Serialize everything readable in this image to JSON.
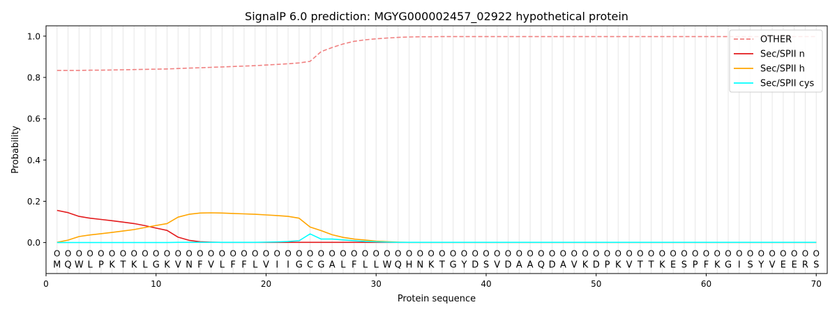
{
  "chart_data": {
    "type": "line",
    "title": "SignalP 6.0 prediction: MGYG000002457_02922 hypothetical protein",
    "xlabel": "Protein sequence",
    "ylabel": "Probability",
    "xlim": [
      0,
      71
    ],
    "ylim": [
      -0.15,
      1.05
    ],
    "xticks": [
      0,
      10,
      20,
      30,
      40,
      50,
      60,
      70
    ],
    "yticks": [
      0.0,
      0.2,
      0.4,
      0.6,
      0.8,
      1.0
    ],
    "xtick_labels": [
      "0",
      "10",
      "20",
      "30",
      "40",
      "50",
      "60",
      "70"
    ],
    "ytick_labels": [
      "0.0",
      "0.2",
      "0.4",
      "0.6",
      "0.8",
      "1.0"
    ],
    "legend_position": "top-right",
    "residues": [
      "M",
      "Q",
      "W",
      "L",
      "P",
      "K",
      "T",
      "K",
      "L",
      "G",
      "K",
      "V",
      "N",
      "F",
      "V",
      "L",
      "F",
      "F",
      "L",
      "V",
      "I",
      "I",
      "G",
      "C",
      "G",
      "A",
      "L",
      "F",
      "L",
      "L",
      "W",
      "Q",
      "H",
      "N",
      "K",
      "T",
      "G",
      "Y",
      "D",
      "S",
      "V",
      "D",
      "A",
      "A",
      "Q",
      "D",
      "A",
      "V",
      "K",
      "D",
      "P",
      "K",
      "V",
      "T",
      "T",
      "K",
      "E",
      "S",
      "P",
      "F",
      "K",
      "G",
      "I",
      "S",
      "Y",
      "V",
      "E",
      "E",
      "R",
      "S"
    ],
    "region_labels": [
      "O",
      "O",
      "O",
      "O",
      "O",
      "O",
      "O",
      "O",
      "O",
      "O",
      "O",
      "O",
      "O",
      "O",
      "O",
      "O",
      "O",
      "O",
      "O",
      "O",
      "O",
      "O",
      "O",
      "O",
      "O",
      "O",
      "O",
      "O",
      "O",
      "O",
      "O",
      "O",
      "O",
      "O",
      "O",
      "O",
      "O",
      "O",
      "O",
      "O",
      "O",
      "O",
      "O",
      "O",
      "O",
      "O",
      "O",
      "O",
      "O",
      "O",
      "O",
      "O",
      "O",
      "O",
      "O",
      "O",
      "O",
      "O",
      "O",
      "O",
      "O",
      "O",
      "O",
      "O",
      "O",
      "O",
      "O",
      "O",
      "O",
      "O"
    ],
    "series": [
      {
        "name": "OTHER",
        "color": "#f08080",
        "dash": true,
        "values": [
          0.834,
          0.834,
          0.834,
          0.835,
          0.835,
          0.836,
          0.837,
          0.838,
          0.839,
          0.84,
          0.841,
          0.843,
          0.845,
          0.847,
          0.849,
          0.851,
          0.853,
          0.855,
          0.857,
          0.86,
          0.863,
          0.866,
          0.87,
          0.878,
          0.925,
          0.945,
          0.962,
          0.975,
          0.982,
          0.987,
          0.991,
          0.994,
          0.996,
          0.997,
          0.997,
          0.998,
          0.998,
          0.998,
          0.998,
          0.998,
          0.998,
          0.998,
          0.998,
          0.998,
          0.998,
          0.998,
          0.998,
          0.998,
          0.998,
          0.998,
          0.998,
          0.998,
          0.998,
          0.998,
          0.998,
          0.998,
          0.998,
          0.998,
          0.998,
          0.998,
          0.998,
          0.998,
          0.998,
          0.998,
          0.998,
          0.998,
          0.998,
          0.998,
          0.998,
          0.998
        ]
      },
      {
        "name": "Sec/SPII n",
        "color": "#e31a1c",
        "dash": false,
        "values": [
          0.156,
          0.145,
          0.127,
          0.118,
          0.112,
          0.106,
          0.099,
          0.092,
          0.082,
          0.07,
          0.059,
          0.026,
          0.011,
          0.004,
          0.002,
          0.001,
          0.001,
          0.001,
          0.001,
          0.001,
          0.001,
          0.001,
          0.001,
          0.001,
          0.001,
          0.001,
          0.001,
          0.001,
          0.001,
          0.001,
          0.001,
          0.001,
          0.001,
          0.001,
          0.001,
          0.001,
          0.001,
          0.001,
          0.001,
          0.001,
          0.001,
          0.001,
          0.001,
          0.001,
          0.001,
          0.001,
          0.001,
          0.001,
          0.001,
          0.001,
          0.001,
          0.001,
          0.001,
          0.001,
          0.001,
          0.001,
          0.001,
          0.001,
          0.001,
          0.001,
          0.001,
          0.001,
          0.001,
          0.001,
          0.001,
          0.001,
          0.001,
          0.001,
          0.001,
          0.001
        ]
      },
      {
        "name": "Sec/SPII h",
        "color": "#ffa500",
        "dash": false,
        "values": [
          0.001,
          0.012,
          0.029,
          0.037,
          0.043,
          0.049,
          0.056,
          0.063,
          0.073,
          0.083,
          0.092,
          0.123,
          0.137,
          0.143,
          0.144,
          0.143,
          0.141,
          0.139,
          0.137,
          0.134,
          0.131,
          0.127,
          0.118,
          0.075,
          0.058,
          0.038,
          0.025,
          0.017,
          0.012,
          0.007,
          0.004,
          0.002,
          0.001,
          0.001,
          0.001,
          0.001,
          0.001,
          0.001,
          0.001,
          0.001,
          0.001,
          0.001,
          0.001,
          0.001,
          0.001,
          0.001,
          0.001,
          0.001,
          0.001,
          0.001,
          0.001,
          0.001,
          0.001,
          0.001,
          0.001,
          0.001,
          0.001,
          0.001,
          0.001,
          0.001,
          0.001,
          0.001,
          0.001,
          0.001,
          0.001,
          0.001,
          0.001,
          0.001,
          0.001,
          0.001
        ]
      },
      {
        "name": "Sec/SPII cys",
        "color": "#00ffff",
        "dash": false,
        "values": [
          0.0,
          0.0,
          0.0,
          0.0,
          0.0,
          0.0,
          0.0,
          0.0,
          0.0,
          0.0,
          0.0,
          0.001,
          0.001,
          0.001,
          0.001,
          0.001,
          0.001,
          0.001,
          0.001,
          0.002,
          0.003,
          0.005,
          0.009,
          0.042,
          0.017,
          0.017,
          0.013,
          0.009,
          0.006,
          0.004,
          0.002,
          0.001,
          0.001,
          0.001,
          0.001,
          0.001,
          0.001,
          0.001,
          0.001,
          0.001,
          0.001,
          0.001,
          0.001,
          0.001,
          0.001,
          0.001,
          0.001,
          0.001,
          0.001,
          0.001,
          0.001,
          0.001,
          0.001,
          0.001,
          0.001,
          0.001,
          0.001,
          0.001,
          0.001,
          0.001,
          0.001,
          0.001,
          0.001,
          0.001,
          0.001,
          0.001,
          0.001,
          0.001,
          0.001,
          0.001
        ]
      }
    ]
  }
}
